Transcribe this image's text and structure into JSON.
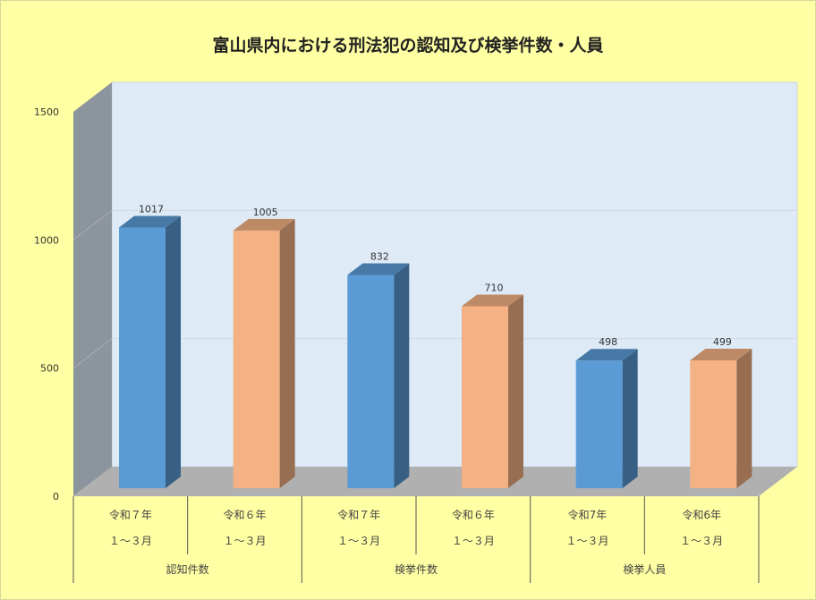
{
  "title": "富山県内における刑法犯の認知及び検挙件数・人員",
  "chart_data": {
    "type": "bar",
    "title": "富山県内における刑法犯の認知及び検挙件数・人員",
    "ylim": [
      0,
      1500
    ],
    "yticks": [
      0,
      500,
      1000,
      1500
    ],
    "grid": true,
    "bars": [
      {
        "line1": "令和７年",
        "line2": "１～３月",
        "group": "認知件数",
        "value": 1017,
        "color": "#5b9bd5"
      },
      {
        "line1": "令和６年",
        "line2": "１～３月",
        "group": "認知件数",
        "value": 1005,
        "color": "#f4b183"
      },
      {
        "line1": "令和７年",
        "line2": "１～３月",
        "group": "検挙件数",
        "value": 832,
        "color": "#5b9bd5"
      },
      {
        "line1": "令和６年",
        "line2": "１～３月",
        "group": "検挙件数",
        "value": 710,
        "color": "#f4b183"
      },
      {
        "line1": "令和7年",
        "line2": "１～３月",
        "group": "検挙人員",
        "value": 498,
        "color": "#5b9bd5"
      },
      {
        "line1": "令和6年",
        "line2": "１～３月",
        "group": "検挙人員",
        "value": 499,
        "color": "#f4b183"
      }
    ],
    "groups": [
      "認知件数",
      "検挙件数",
      "検挙人員"
    ]
  }
}
